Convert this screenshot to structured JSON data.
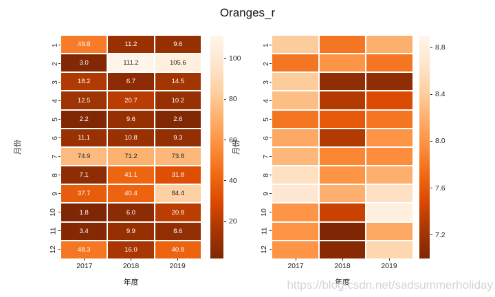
{
  "title": "Oranges_r",
  "watermark": "https://blog.csdn.net/sadsummerholiday",
  "colors": {
    "background": "#ffffff",
    "text": "#262626",
    "annot_dark": "#262626",
    "annot_light": "#ffffff",
    "watermark": "#d4d4d8",
    "cmap_name": "Oranges_r",
    "cmap_anchors": [
      "#fff5eb",
      "#fee6ce",
      "#fdd0a2",
      "#fdae6b",
      "#fd8d3c",
      "#f16913",
      "#d94801",
      "#a63603",
      "#7f2704"
    ]
  },
  "chart_data": [
    {
      "type": "heatmap",
      "panel": "left",
      "xlabel": "年度",
      "ylabel": "月份",
      "x_ticklabels": [
        "2017",
        "2018",
        "2019"
      ],
      "y_ticklabels": [
        "1",
        "2",
        "3",
        "4",
        "5",
        "6",
        "7",
        "8",
        "9",
        "10",
        "11",
        "12"
      ],
      "colormap": "Oranges_r",
      "vmin": 1.8,
      "vmax": 111.2,
      "annotated": true,
      "annot_format": "0.1f",
      "colorbar_ticklabels": [
        "100",
        "80",
        "60",
        "40",
        "20"
      ],
      "values": [
        [
          49.8,
          11.2,
          9.6
        ],
        [
          3.0,
          111.2,
          105.6
        ],
        [
          18.2,
          6.7,
          14.5
        ],
        [
          12.5,
          20.7,
          10.2
        ],
        [
          2.2,
          9.6,
          2.6
        ],
        [
          11.1,
          10.8,
          9.3
        ],
        [
          74.9,
          71.2,
          73.8
        ],
        [
          7.1,
          41.1,
          31.8
        ],
        [
          37.7,
          40.4,
          84.4
        ],
        [
          1.8,
          6.0,
          20.8
        ],
        [
          3.4,
          9.9,
          8.6
        ],
        [
          48.3,
          16.0,
          40.8
        ]
      ]
    },
    {
      "type": "heatmap",
      "panel": "right",
      "xlabel": "年度",
      "ylabel": "月份",
      "x_ticklabels": [
        "2017",
        "2018",
        "2019"
      ],
      "y_ticklabels": [
        "1",
        "2",
        "3",
        "4",
        "5",
        "6",
        "7",
        "8",
        "9",
        "10",
        "11",
        "12"
      ],
      "colormap": "Oranges_r",
      "vmin": 7.0,
      "vmax": 8.9,
      "annotated": false,
      "colorbar_ticklabels": [
        "8.8",
        "8.4",
        "8.0",
        "7.6",
        "7.2"
      ],
      "values": [
        [
          8.4,
          7.8,
          8.2
        ],
        [
          7.8,
          8.0,
          7.8
        ],
        [
          8.4,
          7.1,
          7.1
        ],
        [
          8.3,
          7.3,
          7.5
        ],
        [
          7.8,
          7.6,
          7.8
        ],
        [
          8.15,
          7.3,
          8.0
        ],
        [
          8.25,
          7.9,
          7.95
        ],
        [
          8.6,
          8.0,
          8.2
        ],
        [
          8.7,
          8.2,
          8.6
        ],
        [
          8.0,
          7.4,
          8.8
        ],
        [
          8.0,
          7.0,
          8.15
        ],
        [
          8.0,
          7.05,
          8.5
        ]
      ]
    }
  ]
}
